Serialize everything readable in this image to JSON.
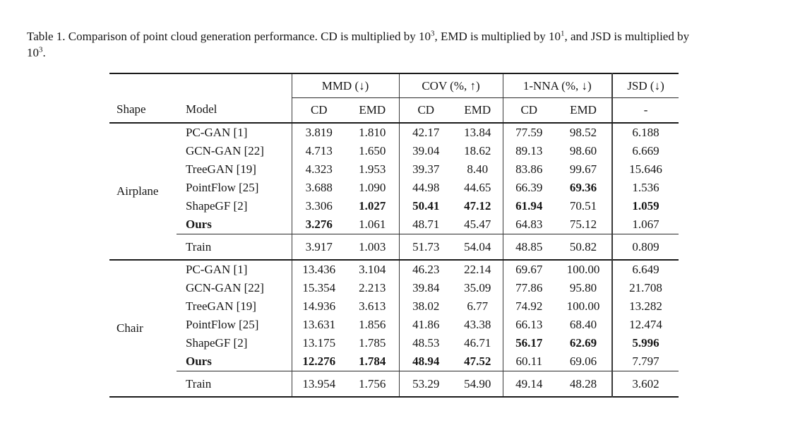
{
  "caption": {
    "line1_seg1": "Table 1. Comparison of point cloud generation performance. CD is multiplied by 10",
    "line1_sup1": "3",
    "line1_seg2": ", EMD is multiplied by 10",
    "line1_sup2": "1",
    "line1_seg3": ", and JSD is multiplied by",
    "line2_seg1": "10",
    "line2_sup1": "3",
    "line2_seg2": "."
  },
  "table": {
    "header": {
      "shape": "Shape",
      "model": "Model",
      "groups": [
        {
          "label": "MMD (↓)",
          "sub": [
            "CD",
            "EMD"
          ]
        },
        {
          "label": "COV (%, ↑)",
          "sub": [
            "CD",
            "EMD"
          ]
        },
        {
          "label": "1-NNA (%, ↓)",
          "sub": [
            "CD",
            "EMD"
          ]
        },
        {
          "label": "JSD (↓)",
          "sub": [
            "-"
          ]
        }
      ]
    },
    "columns": [
      "mmd-cd",
      "mmd-emd",
      "cov-cd",
      "cov-emd",
      "nna-cd",
      "nna-emd",
      "jsd"
    ],
    "sections": [
      {
        "shape": "Airplane",
        "rows": [
          {
            "model": "PC-GAN [1]",
            "values": [
              "3.819",
              "1.810",
              "42.17",
              "13.84",
              "77.59",
              "98.52",
              "6.188"
            ],
            "bold": [
              0,
              0,
              0,
              0,
              0,
              0,
              0
            ],
            "bold_model": false
          },
          {
            "model": "GCN-GAN [22]",
            "values": [
              "4.713",
              "1.650",
              "39.04",
              "18.62",
              "89.13",
              "98.60",
              "6.669"
            ],
            "bold": [
              0,
              0,
              0,
              0,
              0,
              0,
              0
            ],
            "bold_model": false
          },
          {
            "model": "TreeGAN [19]",
            "values": [
              "4.323",
              "1.953",
              "39.37",
              "8.40",
              "83.86",
              "99.67",
              "15.646"
            ],
            "bold": [
              0,
              0,
              0,
              0,
              0,
              0,
              0
            ],
            "bold_model": false
          },
          {
            "model": "PointFlow [25]",
            "values": [
              "3.688",
              "1.090",
              "44.98",
              "44.65",
              "66.39",
              "69.36",
              "1.536"
            ],
            "bold": [
              0,
              0,
              0,
              0,
              0,
              1,
              0
            ],
            "bold_model": false
          },
          {
            "model": "ShapeGF [2]",
            "values": [
              "3.306",
              "1.027",
              "50.41",
              "47.12",
              "61.94",
              "70.51",
              "1.059"
            ],
            "bold": [
              0,
              1,
              1,
              1,
              1,
              0,
              1
            ],
            "bold_model": false
          },
          {
            "model": "Ours",
            "values": [
              "3.276",
              "1.061",
              "48.71",
              "45.47",
              "64.83",
              "75.12",
              "1.067"
            ],
            "bold": [
              1,
              0,
              0,
              0,
              0,
              0,
              0
            ],
            "bold_model": true
          }
        ],
        "train": {
          "label": "Train",
          "values": [
            "3.917",
            "1.003",
            "51.73",
            "54.04",
            "48.85",
            "50.82",
            "0.809"
          ]
        }
      },
      {
        "shape": "Chair",
        "rows": [
          {
            "model": "PC-GAN [1]",
            "values": [
              "13.436",
              "3.104",
              "46.23",
              "22.14",
              "69.67",
              "100.00",
              "6.649"
            ],
            "bold": [
              0,
              0,
              0,
              0,
              0,
              0,
              0
            ],
            "bold_model": false
          },
          {
            "model": "GCN-GAN [22]",
            "values": [
              "15.354",
              "2.213",
              "39.84",
              "35.09",
              "77.86",
              "95.80",
              "21.708"
            ],
            "bold": [
              0,
              0,
              0,
              0,
              0,
              0,
              0
            ],
            "bold_model": false
          },
          {
            "model": "TreeGAN [19]",
            "values": [
              "14.936",
              "3.613",
              "38.02",
              "6.77",
              "74.92",
              "100.00",
              "13.282"
            ],
            "bold": [
              0,
              0,
              0,
              0,
              0,
              0,
              0
            ],
            "bold_model": false
          },
          {
            "model": "PointFlow [25]",
            "values": [
              "13.631",
              "1.856",
              "41.86",
              "43.38",
              "66.13",
              "68.40",
              "12.474"
            ],
            "bold": [
              0,
              0,
              0,
              0,
              0,
              0,
              0
            ],
            "bold_model": false
          },
          {
            "model": "ShapeGF [2]",
            "values": [
              "13.175",
              "1.785",
              "48.53",
              "46.71",
              "56.17",
              "62.69",
              "5.996"
            ],
            "bold": [
              0,
              0,
              0,
              0,
              1,
              1,
              1
            ],
            "bold_model": false
          },
          {
            "model": "Ours",
            "values": [
              "12.276",
              "1.784",
              "48.94",
              "47.52",
              "60.11",
              "69.06",
              "7.797"
            ],
            "bold": [
              1,
              1,
              1,
              1,
              0,
              0,
              0
            ],
            "bold_model": true
          }
        ],
        "train": {
          "label": "Train",
          "values": [
            "13.954",
            "1.756",
            "53.29",
            "54.90",
            "49.14",
            "48.28",
            "3.602"
          ]
        }
      }
    ]
  }
}
